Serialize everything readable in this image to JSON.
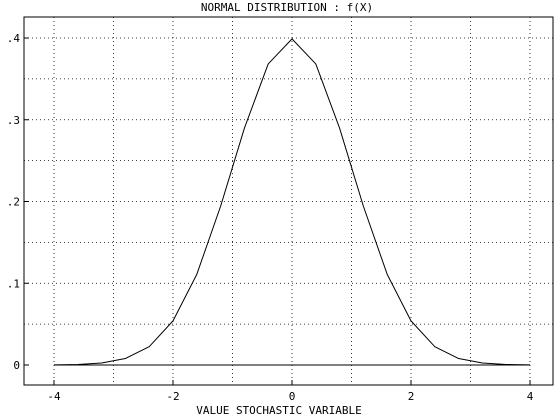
{
  "chart_data": {
    "type": "line",
    "title": "NORMAL DISTRIBUTION : f(X)",
    "xlabel": "VALUE STOCHASTIC VARIABLE",
    "ylabel": "",
    "xlim": [
      -4,
      4
    ],
    "ylim": [
      0,
      0.4
    ],
    "x_ticks": [
      {
        "value": -4,
        "label": "-4"
      },
      {
        "value": -2,
        "label": "-2"
      },
      {
        "value": 0,
        "label": "0"
      },
      {
        "value": 2,
        "label": "2"
      },
      {
        "value": 4,
        "label": "4"
      }
    ],
    "y_ticks": [
      {
        "value": 0,
        "label": "0"
      },
      {
        "value": 0.1,
        "label": ".1"
      },
      {
        "value": 0.2,
        "label": ".2"
      },
      {
        "value": 0.3,
        "label": ".3"
      },
      {
        "value": 0.4,
        "label": ".4"
      }
    ],
    "grid": true,
    "grid_style": "dotted",
    "series": [
      {
        "color": "#000000",
        "x": [
          -4.0,
          -3.6,
          -3.2,
          -2.8,
          -2.4,
          -2.0,
          -1.6,
          -1.2,
          -0.8,
          -0.4,
          0.0,
          0.4,
          0.8,
          1.2,
          1.6,
          2.0,
          2.4,
          2.8,
          3.2,
          3.6,
          4.0
        ],
        "y": [
          0.0001,
          0.0006,
          0.0024,
          0.0079,
          0.0224,
          0.054,
          0.1109,
          0.1942,
          0.2897,
          0.3683,
          0.3989,
          0.3683,
          0.2897,
          0.1942,
          0.1109,
          0.054,
          0.0224,
          0.0079,
          0.0024,
          0.0006,
          0.0001
        ]
      }
    ]
  }
}
